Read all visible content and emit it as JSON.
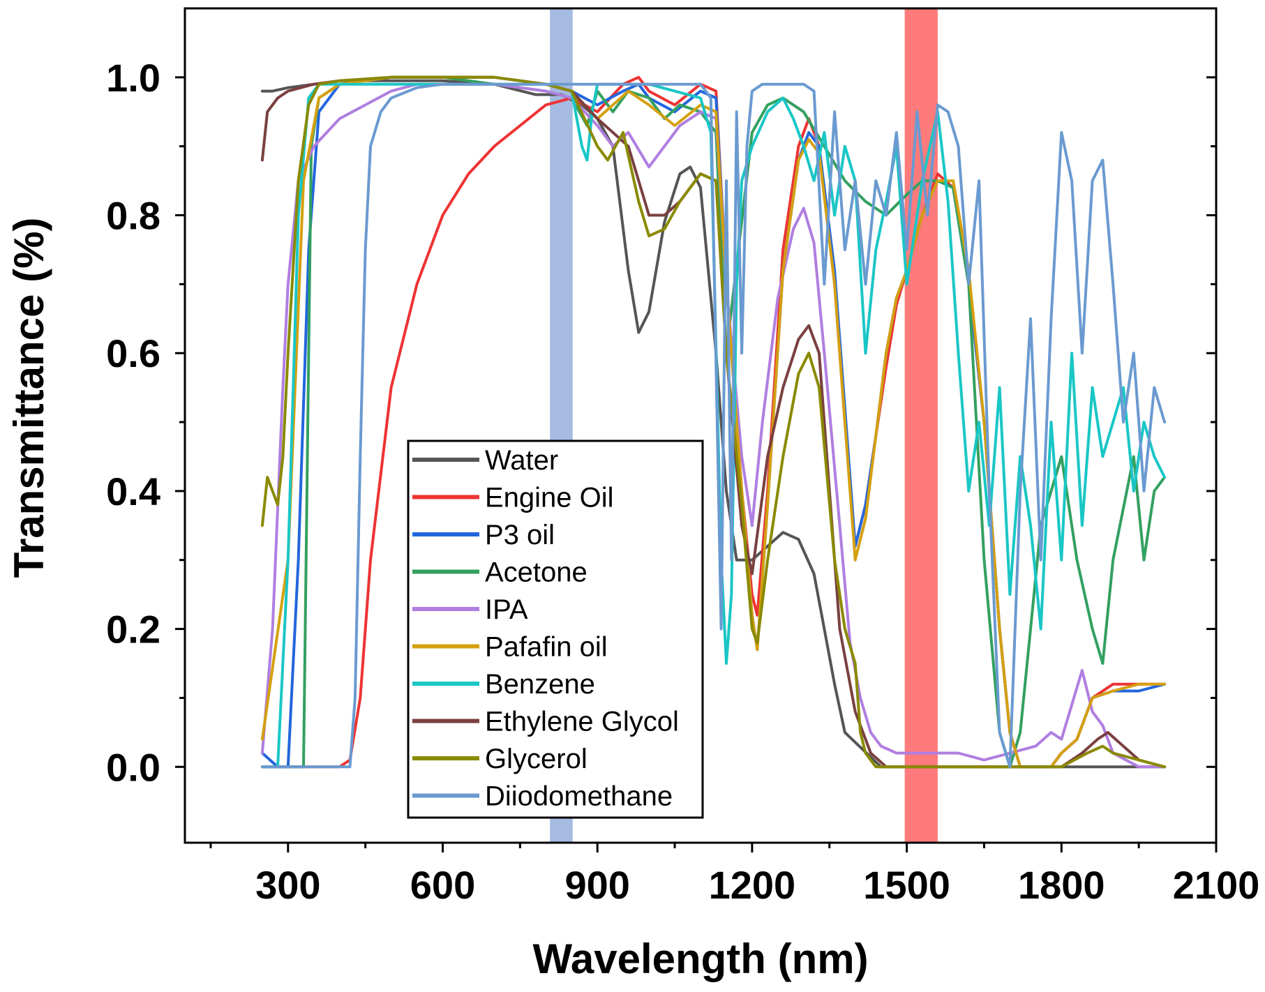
{
  "chart_data": {
    "type": "line",
    "title": "",
    "xlabel": "Wavelength (nm)",
    "ylabel": "Transmittance (%)",
    "xlim": [
      100,
      2100
    ],
    "ylim": [
      -0.11,
      1.1
    ],
    "xticks": [
      300,
      600,
      900,
      1200,
      1500,
      1800,
      2100
    ],
    "xtick_labels": [
      "300",
      "600",
      "900",
      "1200",
      "1500",
      "1800",
      "2100"
    ],
    "yticks": [
      0.0,
      0.2,
      0.4,
      0.6,
      0.8,
      1.0
    ],
    "ytick_labels": [
      "0.0",
      "0.2",
      "0.4",
      "0.6",
      "0.8",
      "1.0"
    ],
    "grid": false,
    "legend_position": "center",
    "highlight_bands": [
      {
        "name": "808 nm band",
        "x": [
          808,
          852
        ],
        "color": "#8eaadb"
      },
      {
        "name": "1550 nm band",
        "x": [
          1496,
          1560
        ],
        "color": "#ff5a5a"
      }
    ],
    "series": [
      {
        "name": "Water",
        "color": "#555555",
        "x": [
          250,
          270,
          300,
          350,
          400,
          500,
          600,
          700,
          780,
          830,
          870,
          900,
          930,
          960,
          980,
          1000,
          1030,
          1060,
          1080,
          1100,
          1130,
          1150,
          1170,
          1200,
          1230,
          1260,
          1290,
          1320,
          1340,
          1360,
          1380,
          1450,
          1550,
          1650,
          1800,
          2000
        ],
        "y": [
          0.98,
          0.98,
          0.985,
          0.99,
          0.995,
          0.995,
          0.995,
          0.99,
          0.975,
          0.975,
          0.96,
          0.94,
          0.9,
          0.72,
          0.63,
          0.66,
          0.79,
          0.86,
          0.87,
          0.84,
          0.6,
          0.4,
          0.3,
          0.3,
          0.32,
          0.34,
          0.33,
          0.28,
          0.2,
          0.12,
          0.05,
          0.0,
          0.0,
          0.0,
          0.0,
          0.0
        ]
      },
      {
        "name": "Engine Oil",
        "color": "#ee3333",
        "x": [
          250,
          300,
          350,
          400,
          420,
          440,
          460,
          500,
          550,
          600,
          650,
          700,
          750,
          800,
          850,
          900,
          950,
          980,
          1000,
          1050,
          1100,
          1130,
          1150,
          1180,
          1200,
          1210,
          1230,
          1260,
          1290,
          1310,
          1330,
          1360,
          1380,
          1400,
          1420,
          1440,
          1460,
          1480,
          1500,
          1530,
          1560,
          1590,
          1620,
          1650,
          1680,
          1700,
          1720,
          1750,
          1780,
          1800,
          1830,
          1860,
          1900,
          1950,
          2000
        ],
        "y": [
          0.0,
          0.0,
          0.0,
          0.0,
          0.01,
          0.1,
          0.3,
          0.55,
          0.7,
          0.8,
          0.86,
          0.9,
          0.93,
          0.96,
          0.97,
          0.95,
          0.99,
          1.0,
          0.98,
          0.96,
          0.99,
          0.98,
          0.7,
          0.4,
          0.25,
          0.22,
          0.4,
          0.75,
          0.9,
          0.94,
          0.9,
          0.7,
          0.5,
          0.32,
          0.38,
          0.48,
          0.58,
          0.67,
          0.72,
          0.8,
          0.86,
          0.84,
          0.7,
          0.5,
          0.2,
          0.05,
          0.0,
          0.0,
          0.0,
          0.02,
          0.04,
          0.1,
          0.12,
          0.12,
          0.12
        ]
      },
      {
        "name": "P3 oil",
        "color": "#2266dd",
        "x": [
          250,
          280,
          300,
          320,
          340,
          360,
          400,
          500,
          600,
          700,
          800,
          850,
          900,
          950,
          980,
          1000,
          1050,
          1100,
          1130,
          1150,
          1180,
          1200,
          1210,
          1230,
          1260,
          1290,
          1310,
          1330,
          1360,
          1380,
          1400,
          1420,
          1440,
          1460,
          1480,
          1500,
          1530,
          1560,
          1590,
          1620,
          1650,
          1680,
          1700,
          1720,
          1750,
          1780,
          1800,
          1830,
          1860,
          1900,
          1950,
          2000
        ],
        "y": [
          0.02,
          0.0,
          0.0,
          0.3,
          0.75,
          0.95,
          0.99,
          1.0,
          1.0,
          1.0,
          0.99,
          0.98,
          0.96,
          0.98,
          0.99,
          0.97,
          0.95,
          0.98,
          0.97,
          0.7,
          0.4,
          0.22,
          0.17,
          0.38,
          0.72,
          0.88,
          0.92,
          0.9,
          0.72,
          0.52,
          0.32,
          0.38,
          0.48,
          0.6,
          0.68,
          0.72,
          0.8,
          0.85,
          0.84,
          0.7,
          0.5,
          0.2,
          0.05,
          0.0,
          0.0,
          0.0,
          0.02,
          0.04,
          0.1,
          0.11,
          0.11,
          0.12
        ]
      },
      {
        "name": "Acetone",
        "color": "#33a060",
        "x": [
          250,
          300,
          320,
          330,
          345,
          360,
          400,
          500,
          600,
          700,
          800,
          850,
          880,
          900,
          930,
          960,
          1000,
          1030,
          1060,
          1100,
          1130,
          1150,
          1200,
          1230,
          1260,
          1300,
          1340,
          1380,
          1420,
          1460,
          1500,
          1530,
          1560,
          1590,
          1620,
          1650,
          1680,
          1700,
          1720,
          1740,
          1760,
          1800,
          1830,
          1860,
          1880,
          1900,
          1940,
          1960,
          1980,
          2000
        ],
        "y": [
          0.0,
          0.0,
          0.0,
          0.0,
          0.9,
          0.97,
          0.99,
          1.0,
          1.0,
          0.99,
          0.98,
          0.97,
          0.93,
          0.98,
          0.95,
          0.98,
          0.97,
          0.94,
          0.96,
          0.95,
          0.92,
          0.6,
          0.92,
          0.96,
          0.97,
          0.95,
          0.9,
          0.85,
          0.82,
          0.8,
          0.83,
          0.85,
          0.85,
          0.84,
          0.7,
          0.3,
          0.05,
          0.0,
          0.05,
          0.2,
          0.35,
          0.45,
          0.3,
          0.2,
          0.15,
          0.3,
          0.45,
          0.3,
          0.4,
          0.42
        ]
      },
      {
        "name": "IPA",
        "color": "#b07ee0",
        "x": [
          250,
          270,
          290,
          300,
          320,
          350,
          400,
          450,
          500,
          550,
          600,
          700,
          800,
          850,
          900,
          930,
          960,
          1000,
          1030,
          1060,
          1100,
          1130,
          1150,
          1180,
          1200,
          1220,
          1250,
          1280,
          1300,
          1320,
          1340,
          1370,
          1390,
          1410,
          1430,
          1450,
          1480,
          1500,
          1550,
          1600,
          1650,
          1700,
          1750,
          1780,
          1800,
          1840,
          1860,
          1880,
          1900,
          1950,
          2000
        ],
        "y": [
          0.02,
          0.2,
          0.55,
          0.7,
          0.85,
          0.9,
          0.94,
          0.96,
          0.98,
          0.99,
          0.99,
          0.99,
          0.98,
          0.97,
          0.93,
          0.9,
          0.92,
          0.87,
          0.9,
          0.93,
          0.95,
          0.94,
          0.7,
          0.45,
          0.35,
          0.5,
          0.68,
          0.78,
          0.81,
          0.76,
          0.6,
          0.35,
          0.18,
          0.1,
          0.05,
          0.03,
          0.02,
          0.02,
          0.02,
          0.02,
          0.01,
          0.02,
          0.03,
          0.05,
          0.04,
          0.14,
          0.08,
          0.06,
          0.02,
          0.0,
          0.0
        ]
      },
      {
        "name": "Pafafin oil",
        "color": "#d4a010",
        "x": [
          250,
          300,
          330,
          360,
          400,
          500,
          600,
          700,
          800,
          850,
          900,
          930,
          960,
          1000,
          1050,
          1100,
          1130,
          1150,
          1180,
          1200,
          1210,
          1230,
          1260,
          1290,
          1310,
          1330,
          1360,
          1380,
          1400,
          1420,
          1440,
          1460,
          1480,
          1500,
          1530,
          1560,
          1590,
          1620,
          1650,
          1680,
          1700,
          1720,
          1750,
          1780,
          1800,
          1830,
          1860,
          1900,
          1950,
          2000
        ],
        "y": [
          0.04,
          0.3,
          0.85,
          0.97,
          0.99,
          1.0,
          1.0,
          1.0,
          0.99,
          0.98,
          0.94,
          0.96,
          0.98,
          0.96,
          0.93,
          0.96,
          0.95,
          0.7,
          0.4,
          0.22,
          0.17,
          0.38,
          0.72,
          0.88,
          0.91,
          0.89,
          0.7,
          0.5,
          0.3,
          0.36,
          0.48,
          0.6,
          0.68,
          0.72,
          0.8,
          0.85,
          0.85,
          0.72,
          0.5,
          0.2,
          0.05,
          0.0,
          0.0,
          0.0,
          0.02,
          0.04,
          0.1,
          0.11,
          0.12,
          0.12
        ]
      },
      {
        "name": "Benzene",
        "color": "#1ac6c6",
        "x": [
          250,
          280,
          300,
          320,
          340,
          360,
          400,
          500,
          600,
          700,
          800,
          850,
          870,
          880,
          890,
          900,
          920,
          950,
          1000,
          1050,
          1100,
          1120,
          1140,
          1150,
          1160,
          1170,
          1180,
          1200,
          1230,
          1260,
          1280,
          1300,
          1320,
          1340,
          1360,
          1380,
          1400,
          1420,
          1440,
          1460,
          1480,
          1500,
          1530,
          1560,
          1580,
          1600,
          1620,
          1640,
          1660,
          1680,
          1700,
          1720,
          1740,
          1760,
          1780,
          1800,
          1820,
          1840,
          1860,
          1880,
          1900,
          1920,
          1940,
          1960,
          1980,
          2000
        ],
        "y": [
          0.0,
          0.0,
          0.3,
          0.8,
          0.97,
          0.99,
          0.99,
          0.99,
          0.99,
          0.99,
          0.99,
          0.98,
          0.9,
          0.88,
          0.95,
          0.99,
          0.99,
          0.99,
          0.99,
          0.98,
          0.97,
          0.92,
          0.3,
          0.15,
          0.25,
          0.7,
          0.85,
          0.9,
          0.95,
          0.97,
          0.94,
          0.9,
          0.85,
          0.92,
          0.8,
          0.9,
          0.85,
          0.6,
          0.75,
          0.82,
          0.9,
          0.7,
          0.85,
          0.95,
          0.82,
          0.6,
          0.4,
          0.5,
          0.35,
          0.55,
          0.25,
          0.45,
          0.35,
          0.2,
          0.5,
          0.3,
          0.6,
          0.35,
          0.55,
          0.45,
          0.5,
          0.55,
          0.4,
          0.5,
          0.45,
          0.42
        ]
      },
      {
        "name": "Ethylene Glycol",
        "color": "#7a4040",
        "x": [
          250,
          260,
          280,
          300,
          350,
          400,
          500,
          600,
          700,
          800,
          850,
          900,
          930,
          960,
          1000,
          1030,
          1060,
          1100,
          1130,
          1150,
          1180,
          1200,
          1230,
          1260,
          1290,
          1310,
          1330,
          1350,
          1370,
          1400,
          1430,
          1460,
          1500,
          1550,
          1600,
          1650,
          1700,
          1750,
          1800,
          1840,
          1870,
          1890,
          1920,
          1950,
          2000
        ],
        "y": [
          0.88,
          0.95,
          0.97,
          0.98,
          0.99,
          0.995,
          1.0,
          1.0,
          1.0,
          0.99,
          0.98,
          0.94,
          0.92,
          0.9,
          0.8,
          0.8,
          0.82,
          0.86,
          0.85,
          0.6,
          0.35,
          0.28,
          0.45,
          0.55,
          0.62,
          0.64,
          0.6,
          0.4,
          0.2,
          0.08,
          0.02,
          0.0,
          0.0,
          0.0,
          0.0,
          0.0,
          0.0,
          0.0,
          0.0,
          0.02,
          0.04,
          0.05,
          0.03,
          0.01,
          0.0
        ]
      },
      {
        "name": "Glycerol",
        "color": "#8a8a00",
        "x": [
          250,
          260,
          270,
          280,
          290,
          300,
          320,
          340,
          360,
          400,
          500,
          600,
          700,
          800,
          850,
          900,
          920,
          950,
          980,
          1000,
          1030,
          1060,
          1100,
          1130,
          1150,
          1180,
          1200,
          1210,
          1230,
          1260,
          1290,
          1310,
          1330,
          1360,
          1380,
          1400,
          1410,
          1420,
          1440,
          1460,
          1500,
          1550,
          1600,
          1650,
          1700,
          1750,
          1800,
          1850,
          1880,
          1900,
          1950,
          2000
        ],
        "y": [
          0.35,
          0.42,
          0.4,
          0.38,
          0.45,
          0.6,
          0.85,
          0.96,
          0.99,
          0.995,
          1.0,
          1.0,
          1.0,
          0.99,
          0.98,
          0.9,
          0.88,
          0.92,
          0.82,
          0.77,
          0.78,
          0.82,
          0.86,
          0.85,
          0.6,
          0.38,
          0.2,
          0.18,
          0.3,
          0.45,
          0.57,
          0.6,
          0.55,
          0.3,
          0.2,
          0.15,
          0.05,
          0.02,
          0.0,
          0.0,
          0.0,
          0.0,
          0.0,
          0.0,
          0.0,
          0.0,
          0.0,
          0.02,
          0.03,
          0.02,
          0.01,
          0.0
        ]
      },
      {
        "name": "Diiodomethane",
        "color": "#6a9ad0",
        "x": [
          250,
          300,
          350,
          400,
          420,
          430,
          440,
          450,
          460,
          480,
          500,
          550,
          600,
          700,
          800,
          850,
          900,
          950,
          1000,
          1050,
          1100,
          1120,
          1140,
          1150,
          1160,
          1170,
          1180,
          1190,
          1200,
          1220,
          1250,
          1280,
          1300,
          1320,
          1340,
          1360,
          1380,
          1400,
          1420,
          1440,
          1460,
          1480,
          1500,
          1520,
          1540,
          1560,
          1580,
          1600,
          1620,
          1640,
          1660,
          1680,
          1700,
          1720,
          1740,
          1760,
          1780,
          1800,
          1820,
          1840,
          1860,
          1880,
          1900,
          1920,
          1940,
          1960,
          1980,
          2000
        ],
        "y": [
          0.0,
          0.0,
          0.0,
          0.0,
          0.0,
          0.1,
          0.45,
          0.75,
          0.9,
          0.95,
          0.97,
          0.985,
          0.99,
          0.99,
          0.99,
          0.99,
          0.99,
          0.99,
          0.99,
          0.99,
          0.99,
          0.97,
          0.2,
          0.85,
          0.3,
          0.95,
          0.6,
          0.9,
          0.98,
          0.99,
          0.99,
          0.99,
          0.99,
          0.98,
          0.7,
          0.95,
          0.75,
          0.85,
          0.7,
          0.85,
          0.8,
          0.92,
          0.75,
          0.95,
          0.8,
          0.96,
          0.95,
          0.9,
          0.7,
          0.85,
          0.4,
          0.05,
          0.0,
          0.4,
          0.65,
          0.3,
          0.65,
          0.92,
          0.85,
          0.6,
          0.85,
          0.88,
          0.7,
          0.5,
          0.6,
          0.4,
          0.55,
          0.5
        ]
      }
    ]
  }
}
